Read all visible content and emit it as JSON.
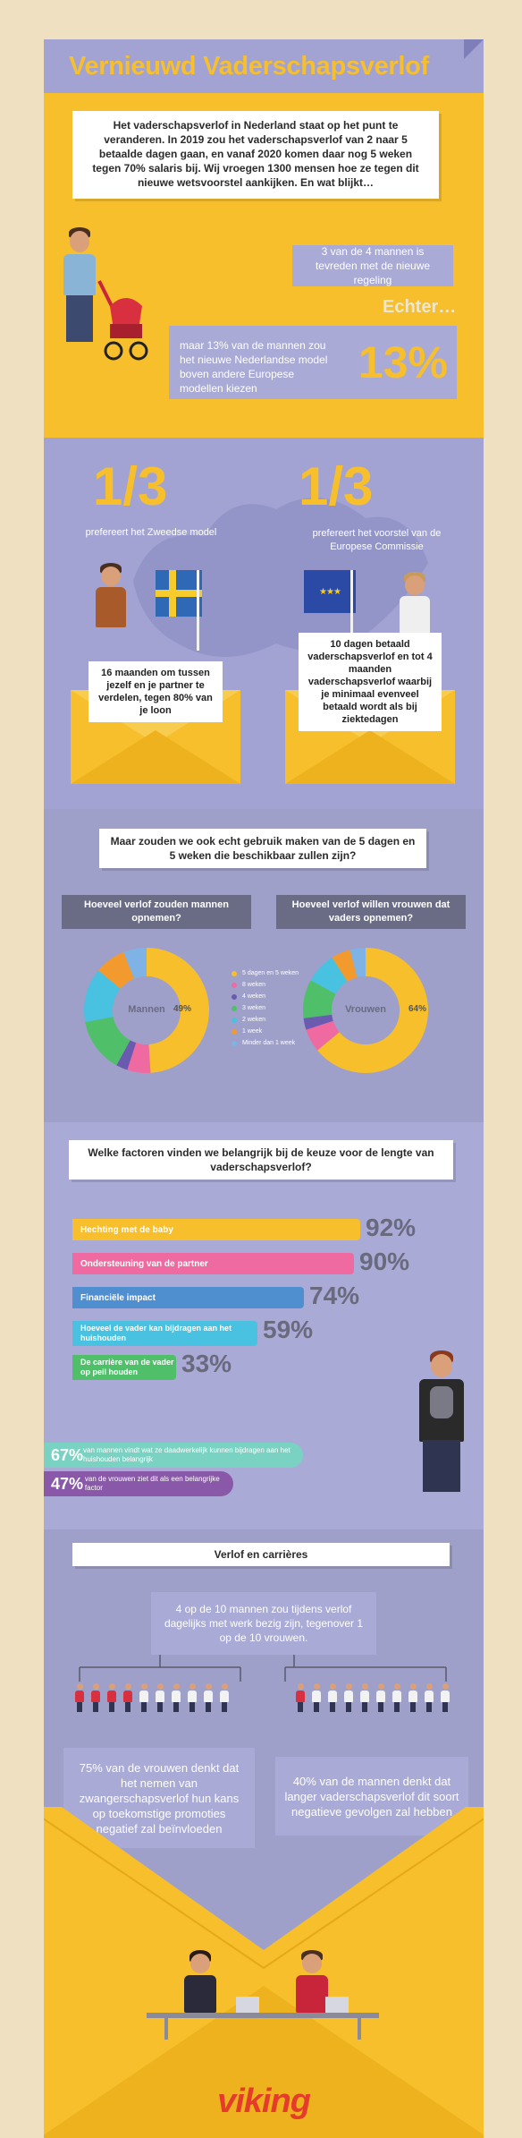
{
  "title": "Vernieuwd Vaderschapsverlof",
  "intro": {
    "text": "Het vaderschapsverlof in Nederland staat op het punt te veranderen. In 2019 zou het vaderschapsverlof van 2 naar 5 betaalde dagen gaan, en vanaf 2020 komen daar nog 5 weken tegen 70% salaris bij. Wij vroegen 1300 mensen hoe ze tegen dit nieuwe wetsvoorstel aankijken. En wat blijkt…",
    "satisfied": "3 van de 4 mannen is tevreden met de nieuwe regeling",
    "but": "Echter…",
    "prefer_text": "maar 13% van de mannen zou het nieuwe Nederlandse model boven andere Europese modellen kiezen",
    "prefer_pct": "13%"
  },
  "models": {
    "left": {
      "fraction": "1/3",
      "label": "prefereert het Zweedse model",
      "letter": "16 maanden om tussen jezelf en je partner te verdelen, tegen 80% van je loon"
    },
    "right": {
      "fraction": "1/3",
      "label": "prefereert het voorstel van de Europese Commissie",
      "letter": "10 dagen betaald vaderschapsverlof en tot 4 maanden vaderschapsverlof waarbij je minimaal evenveel betaald wordt als bij ziektedagen"
    }
  },
  "usage": {
    "question": "Maar zouden we ook echt gebruik maken van de 5 dagen en 5 weken die beschikbaar zullen zijn?",
    "left_q": "Hoeveel verlof zouden mannen opnemen?",
    "right_q": "Hoeveel verlof willen vrouwen dat vaders opnemen?",
    "men": {
      "label": "Mannen",
      "pct": "49%"
    },
    "women": {
      "label": "Vrouwen",
      "pct": "64%"
    },
    "legend": [
      {
        "label": "5 dagen en 5 weken",
        "color": "#f6bf2b"
      },
      {
        "label": "8 weken",
        "color": "#ef6aa0"
      },
      {
        "label": "4 weken",
        "color": "#6a5bb0"
      },
      {
        "label": "3 weken",
        "color": "#4fbf6a"
      },
      {
        "label": "2 weken",
        "color": "#49c1e0"
      },
      {
        "label": "1 week",
        "color": "#f29a2e"
      },
      {
        "label": "Minder dan 1 week",
        "color": "#7fb2e5"
      }
    ],
    "men_shares": [
      49,
      6,
      3,
      14,
      14,
      8,
      6
    ],
    "women_shares": [
      64,
      6,
      3,
      10,
      8,
      5,
      4
    ]
  },
  "factors": {
    "question": "Welke factoren vinden we belangrijk bij de keuze voor de lengte van vaderschapsverlof?",
    "items": [
      {
        "label": "Hechting met de baby",
        "pct": "92%",
        "value": 92,
        "color": "#f6bf2b"
      },
      {
        "label": "Ondersteuning van de partner",
        "pct": "90%",
        "value": 90,
        "color": "#ef6aa0"
      },
      {
        "label": "Financiële impact",
        "pct": "74%",
        "value": 74,
        "color": "#4f8fd0"
      },
      {
        "label": "Hoeveel de vader kan bijdragen aan het huishouden",
        "pct": "59%",
        "value": 59,
        "color": "#49c1e0"
      },
      {
        "label": "De carrière van de vader op peil houden",
        "pct": "33%",
        "value": 33,
        "color": "#4fbf6a"
      }
    ],
    "men_pct": "67%",
    "men_text": "van mannen vindt wat ze daadwerkelijk kunnen bijdragen aan het huishouden belangrijk",
    "women_pct": "47%",
    "women_text": "van de vrouwen ziet dit als een belangrijke factor"
  },
  "career": {
    "title": "Verlof en carrières",
    "work": "4 op de 10 mannen zou tijdens verlof dagelijks met werk bezig zijn, tegenover 1 op de 10 vrouwen.",
    "women": "75% van de vrouwen denkt dat het nemen van zwangerschapsverlof hun kans op toekomstige promoties negatief zal beïnvloeden",
    "men": "40% van de mannen denkt dat langer vaderschapsverlof dit soort negatieve gevolgen zal hebben"
  },
  "brand": "viking"
}
